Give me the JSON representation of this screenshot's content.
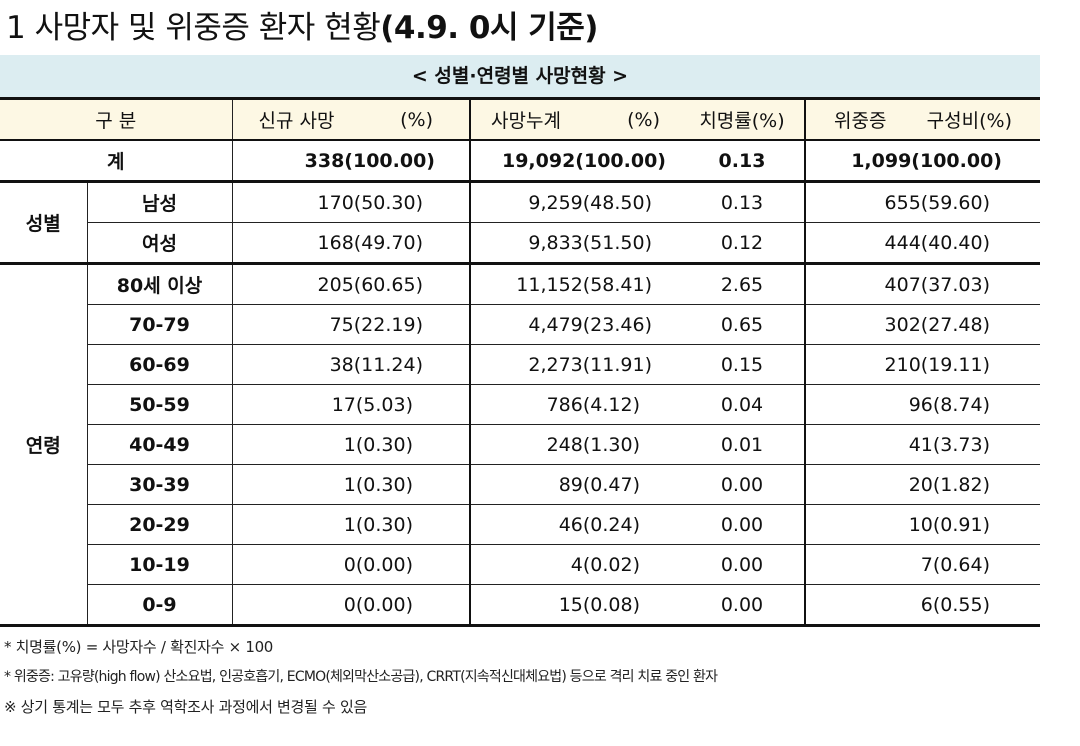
{
  "title": {
    "prefix": "1 사망자 및 위중증 환자 현황",
    "date": "(4.9. 0시 기준)"
  },
  "subtitle": "< 성별·연령별 사망현황 >",
  "headers": {
    "category": "구 분",
    "new_deaths": "신규 사망",
    "new_pct": "(%)",
    "cum_deaths": "사망누계",
    "cum_pct": "(%)",
    "fatality": "치명률(%)",
    "severe": "위중증",
    "severe_pct": "구성비(%)"
  },
  "total": {
    "label": "계",
    "new": "338(100.00)",
    "cum": "19,092(100.00)",
    "cfr": "0.13",
    "severe": "1,099(100.00)"
  },
  "gender": {
    "group": "성별",
    "rows": [
      {
        "label": "남성",
        "new": "170(50.30)",
        "cum": "9,259(48.50)",
        "cfr": "0.13",
        "severe": "655(59.60)"
      },
      {
        "label": "여성",
        "new": "168(49.70)",
        "cum": "9,833(51.50)",
        "cfr": "0.12",
        "severe": "444(40.40)"
      }
    ]
  },
  "age": {
    "group": "연령",
    "rows": [
      {
        "label": "80세 이상",
        "new": "205(60.65)",
        "cum": "11,152(58.41)",
        "cfr": "2.65",
        "severe": "407(37.03)"
      },
      {
        "label": "70-79",
        "new": "75(22.19)",
        "cum": "4,479(23.46)",
        "cfr": "0.65",
        "severe": "302(27.48)"
      },
      {
        "label": "60-69",
        "new": "38(11.24)",
        "cum": "2,273(11.91)",
        "cfr": "0.15",
        "severe": "210(19.11)"
      },
      {
        "label": "50-59",
        "new": "17(5.03)",
        "cum": "786(4.12)",
        "cfr": "0.04",
        "severe": "96(8.74)"
      },
      {
        "label": "40-49",
        "new": "1(0.30)",
        "cum": "248(1.30)",
        "cfr": "0.01",
        "severe": "41(3.73)"
      },
      {
        "label": "30-39",
        "new": "1(0.30)",
        "cum": "89(0.47)",
        "cfr": "0.00",
        "severe": "20(1.82)"
      },
      {
        "label": "20-29",
        "new": "1(0.30)",
        "cum": "46(0.24)",
        "cfr": "0.00",
        "severe": "10(0.91)"
      },
      {
        "label": "10-19",
        "new": "0(0.00)",
        "cum": "4(0.02)",
        "cfr": "0.00",
        "severe": "7(0.64)"
      },
      {
        "label": "0-9",
        "new": "0(0.00)",
        "cum": "15(0.08)",
        "cfr": "0.00",
        "severe": "6(0.55)"
      }
    ]
  },
  "notes": [
    "* 치명률(%) = 사망자수 / 확진자수 × 100",
    "* 위중증: 고유량(high flow) 산소요법, 인공호흡기, ECMO(체외막산소공급), CRRT(지속적신대체요법) 등으로 격리 치료 중인 환자",
    "※ 상기 통계는 모두 추후 역학조사 과정에서 변경될 수 있음"
  ]
}
